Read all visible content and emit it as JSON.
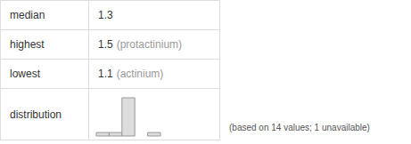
{
  "table": {
    "rows": [
      {
        "label": "median",
        "value": "1.3"
      },
      {
        "label": "highest",
        "value": "1.5",
        "note": "(protactinium)"
      },
      {
        "label": "lowest",
        "value": "1.1",
        "note": "(actinium)"
      },
      {
        "label": "distribution"
      }
    ]
  },
  "footnote": "(based on 14 values; 1 unavailable)",
  "chart_data": {
    "type": "histogram",
    "bins": [
      1.1,
      1.2,
      1.3,
      1.4,
      1.5,
      1.6
    ],
    "values": [
      1,
      1,
      11,
      0,
      1
    ],
    "color": "#dddddd",
    "ylim": [
      0,
      11
    ],
    "tick_labels": false,
    "grid": false
  }
}
